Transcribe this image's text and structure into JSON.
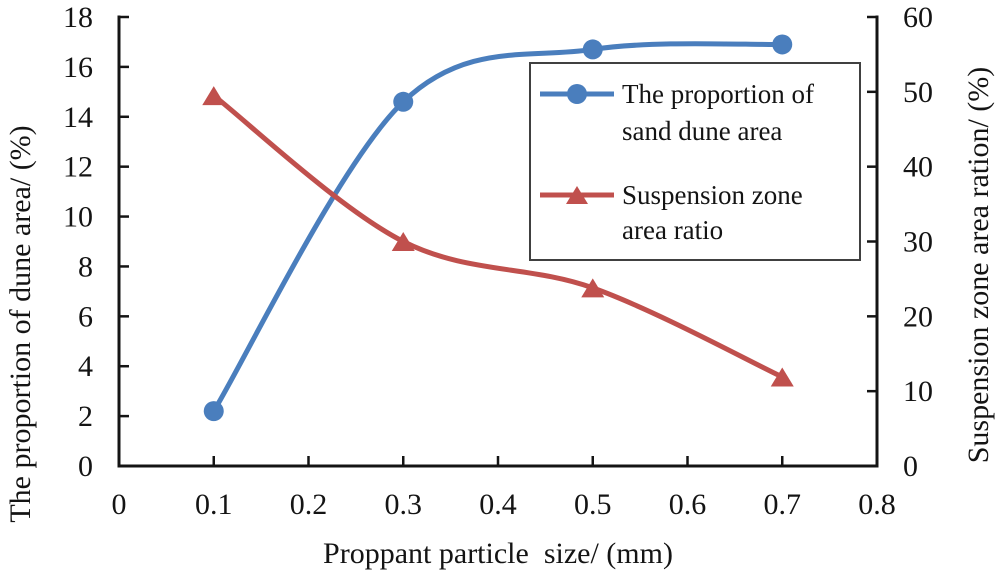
{
  "chart_data": {
    "type": "line",
    "x": [
      0.1,
      0.3,
      0.5,
      0.7
    ],
    "series": [
      {
        "name": "The proportion of sand dune area",
        "axis": "left",
        "color": "#4a7ebd",
        "marker": "circle",
        "values": [
          2.2,
          14.6,
          16.7,
          16.9
        ]
      },
      {
        "name": "Suspension zone area ratio",
        "axis": "right",
        "color": "#c0504d",
        "marker": "triangle",
        "values": [
          49.5,
          30.0,
          23.8,
          11.9
        ]
      }
    ],
    "xlabel": "Proppant particle  size/ (mm)",
    "ylabel_left": "The proportion of dune area/ (%)",
    "ylabel_right": "Suspension zone area ration/ (%)",
    "xlim": [
      0,
      0.8
    ],
    "ylim_left": [
      0,
      18
    ],
    "ylim_right": [
      0,
      60
    ],
    "xticks": [
      "0",
      "0.1",
      "0.2",
      "0.3",
      "0.4",
      "0.5",
      "0.6",
      "0.7",
      "0.8"
    ],
    "yticks_left": [
      "0",
      "2",
      "4",
      "6",
      "8",
      "10",
      "12",
      "14",
      "16",
      "18"
    ],
    "yticks_right": [
      "0",
      "10",
      "20",
      "30",
      "40",
      "50",
      "60"
    ],
    "grid": false,
    "legend_position": "upper-right-inside",
    "axis_color": "#141414",
    "smooth": true
  },
  "legend": {
    "items": [
      {
        "line1": "The proportion of",
        "line2": "sand dune area",
        "color": "#4a7ebd",
        "marker": "circle"
      },
      {
        "line1": "Suspension zone",
        "line2": "area ratio",
        "color": "#c0504d",
        "marker": "triangle"
      }
    ],
    "border_color": "#404040"
  }
}
